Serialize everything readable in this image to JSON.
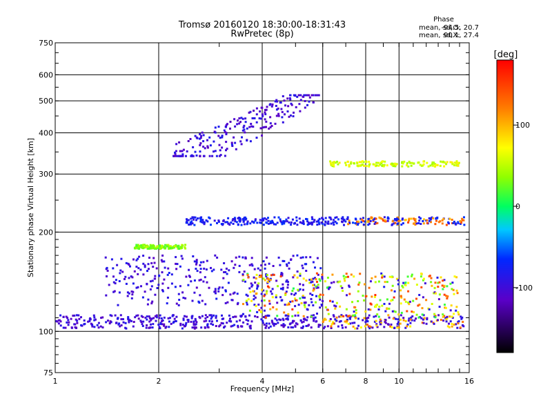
{
  "chart_data": {
    "type": "scatter",
    "title": "Tromsø 20160120 18:30:00-18:31:43",
    "subtitle": "RwPretec (8p)",
    "xlabel": "Frequency [MHz]",
    "ylabel": "Stationary phase Virtual Height [km]",
    "xscale": "log",
    "yscale": "log",
    "xlim": [
      1,
      16
    ],
    "ylim": [
      75,
      750
    ],
    "xticks": [
      1,
      2,
      4,
      6,
      8,
      10,
      16
    ],
    "yticks": [
      75,
      100,
      200,
      300,
      400,
      500,
      600,
      750
    ],
    "grid_x": [
      2,
      4,
      6,
      8,
      10
    ],
    "grid_y": [
      100,
      200,
      300,
      400,
      500,
      600
    ],
    "stats": {
      "title": "Phase",
      "o_label": "mean, sd,O:",
      "o_values": "-94.5, 20.7",
      "x_label": "mean, sd,X:",
      "x_values": "90.1, 27.4"
    },
    "colorbar": {
      "label": "[deg]",
      "range": [
        -180,
        180
      ],
      "ticks": [
        {
          "value": 100,
          "label": "100"
        },
        {
          "value": 0,
          "label": "0"
        },
        {
          "value": -100,
          "label": "-100"
        }
      ]
    },
    "series": [
      {
        "trace": "E-region lower trace",
        "freq_range_mhz": [
          1.0,
          15.5
        ],
        "height_km": [
          102,
          112
        ],
        "phase_deg": -100
      },
      {
        "trace": "E-region retardation (blue)",
        "freq_range_mhz": [
          1.4,
          6.0
        ],
        "height_km": [
          120,
          170
        ],
        "phase_deg": -95
      },
      {
        "trace": "Es spread (mixed)",
        "freq_range_mhz": [
          3.5,
          15.0
        ],
        "height_km": [
          110,
          150
        ],
        "phase_deg": 90
      },
      {
        "trace": "green echo ~180 km",
        "freq_range_mhz": [
          1.7,
          2.4
        ],
        "height_km": [
          178,
          183
        ],
        "phase_deg": 35
      },
      {
        "trace": "F-layer ~215 km",
        "freq_range_mhz": [
          2.4,
          15.5
        ],
        "height_km": [
          210,
          222
        ],
        "phase_deg": -80
      },
      {
        "trace": "F-layer ~320 km",
        "freq_range_mhz": [
          6.3,
          15.0
        ],
        "height_km": [
          316,
          328
        ],
        "phase_deg": 60
      },
      {
        "trace": "multi-hop spread",
        "freq_range_mhz": [
          2.2,
          5.9
        ],
        "height_km": [
          340,
          520
        ],
        "phase_deg": -100
      }
    ]
  }
}
